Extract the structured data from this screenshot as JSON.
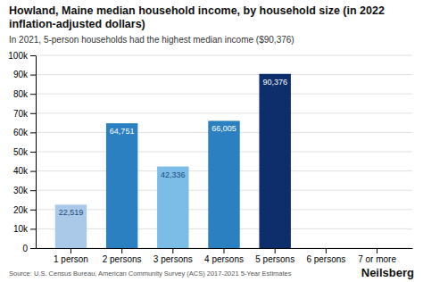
{
  "chart_data": {
    "type": "bar",
    "title": "Howland, Maine median household income, by household size (in 2022 inflation-adjusted dollars)",
    "subtitle": "In 2021, 5-person households had the highest median income ($90,376)",
    "source": "Source: U.S. Census Bureau, American Community Survey (ACS) 2017-2021 5-Year Estimates",
    "branding": "Neilsberg",
    "categories": [
      "1 person",
      "2 persons",
      "3 persons",
      "4 persons",
      "5 persons",
      "6 persons",
      "7 or more"
    ],
    "values": [
      22519,
      64751,
      42336,
      66005,
      90376,
      0,
      0
    ],
    "value_labels": [
      "22,519",
      "64,751",
      "42,336",
      "66,005",
      "90,376",
      null,
      null
    ],
    "colors": [
      "#aac9e8",
      "#2a80c0",
      "#7cbde8",
      "#2a80c0",
      "#0d2d6b",
      null,
      null
    ],
    "ylim": [
      0,
      100000
    ],
    "yticks": [
      0,
      {
        "value": 10000,
        "label": "10k"
      },
      {
        "value": 20000,
        "label": "20k"
      },
      {
        "value": 30000,
        "label": "30k"
      },
      {
        "value": 40000,
        "label": "40k"
      },
      {
        "value": 50000,
        "label": "50k"
      },
      {
        "value": 60000,
        "label": "60k"
      },
      {
        "value": 70000,
        "label": "70k"
      },
      {
        "value": 80000,
        "label": "80k"
      },
      {
        "value": 90000,
        "label": "90k"
      },
      {
        "value": 100000,
        "label": "100k"
      }
    ],
    "grid": true,
    "data_labels": true
  }
}
